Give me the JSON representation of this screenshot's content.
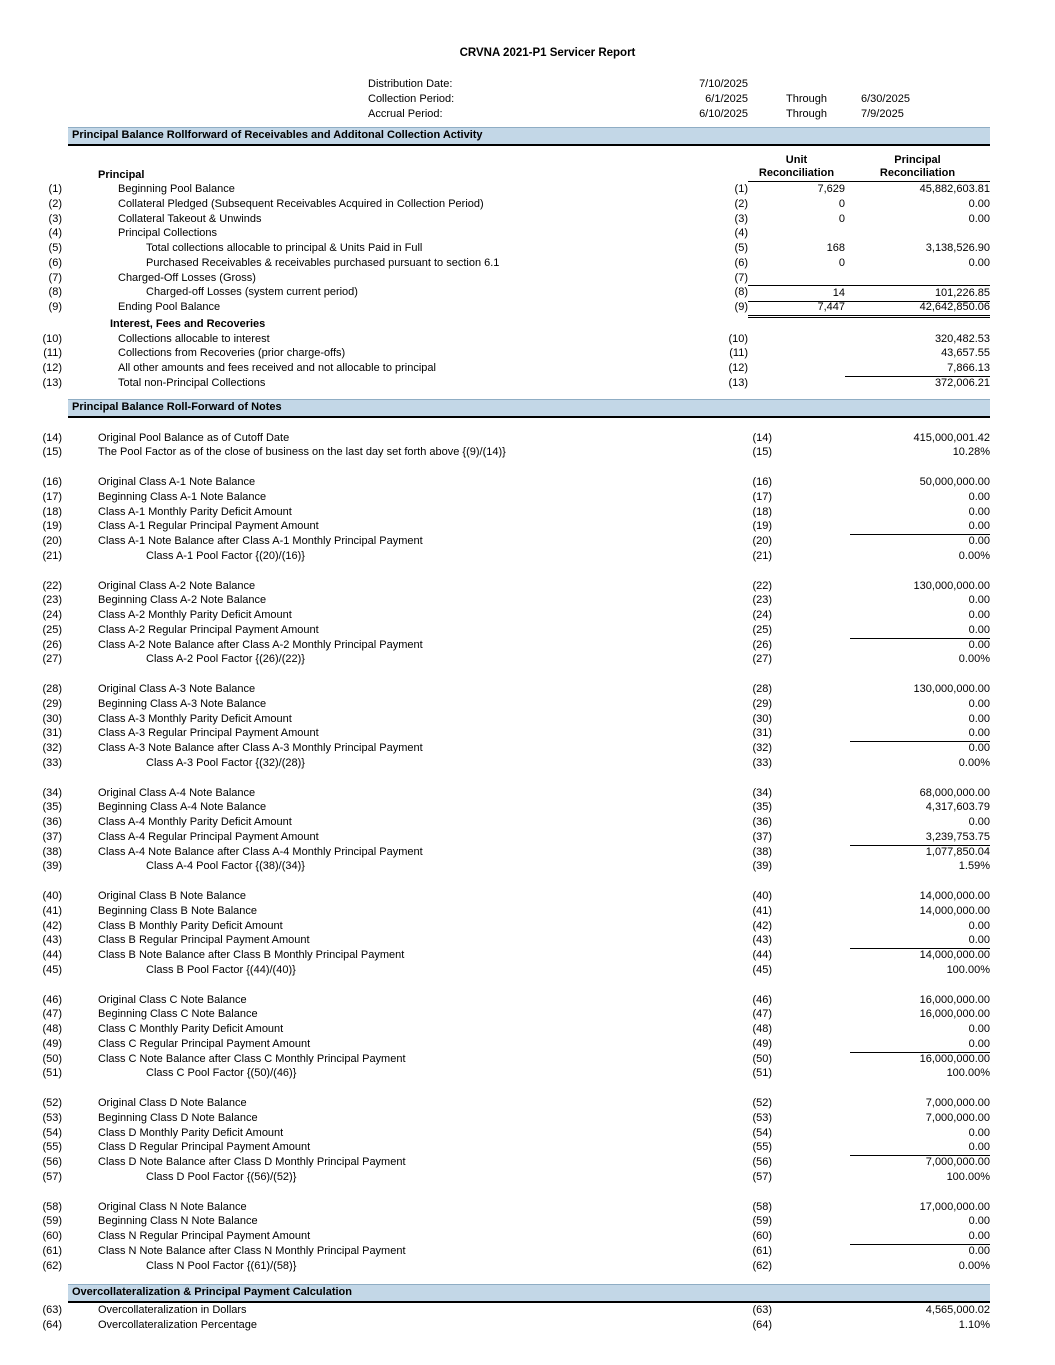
{
  "title": "CRVNA 2021-P1 Servicer Report",
  "meta": [
    {
      "label": "Distribution Date:",
      "value": "7/10/2025",
      "through": "",
      "end": ""
    },
    {
      "label": "Collection Period:",
      "value": "6/1/2025",
      "through": "Through",
      "end": "6/30/2025"
    },
    {
      "label": "Accrual Period:",
      "value": "6/10/2025",
      "through": "Through",
      "end": "7/9/2025"
    }
  ],
  "section1": {
    "bar": "Principal Balance Rollforward of Receivables and Additonal Collection Activity",
    "group_label": "Principal",
    "unit_header_line1": "Unit",
    "unit_header_line2": "Reconciliation",
    "principal_header_line1": "Principal",
    "principal_header_line2": "Reconciliation",
    "rows_a": [
      {
        "num": "(1)",
        "label": "Beginning Pool Balance",
        "indent": 1,
        "unit": "7,629",
        "principal": "45,882,603.81",
        "line": "",
        "span": ""
      },
      {
        "num": "(2)",
        "label": "Collateral Pledged (Subsequent Receivables Acquired in Collection Period)",
        "indent": 1,
        "unit": "0",
        "principal": "0.00",
        "line": "",
        "span": ""
      },
      {
        "num": "(3)",
        "label": "Collateral Takeout & Unwinds",
        "indent": 1,
        "unit": "0",
        "principal": "0.00",
        "line": "",
        "span": ""
      },
      {
        "num": "(4)",
        "label": "Principal Collections",
        "indent": 1,
        "unit": "",
        "principal": "",
        "line": "",
        "span": ""
      },
      {
        "num": "(5)",
        "label": "Total collections allocable to principal & Units Paid in Full",
        "indent": 2,
        "unit": "168",
        "principal": "3,138,526.90",
        "line": "",
        "span": ""
      },
      {
        "num": "(6)",
        "label": "Purchased Receivables & receivables purchased pursuant to section 6.1",
        "indent": 2,
        "unit": "0",
        "principal": "0.00",
        "line": "",
        "span": ""
      },
      {
        "num": "(7)",
        "label": "Charged-Off Losses (Gross)",
        "indent": 1,
        "unit": "",
        "principal": "",
        "line": "",
        "span": ""
      },
      {
        "num": "(8)",
        "label": "Charged-off Losses (system current period)",
        "indent": 2,
        "unit": "14",
        "principal": "101,226.85",
        "line": "top-bottom",
        "span": "both"
      },
      {
        "num": "(9)",
        "label": "Ending Pool Balance",
        "indent": 1,
        "unit": "7,447",
        "principal": "42,642,850.06",
        "line": "double",
        "span": "both"
      }
    ],
    "subheading": "Interest, Fees and Recoveries",
    "rows_b": [
      {
        "num": "(10)",
        "label": "Collections allocable to interest",
        "indent": 1,
        "unit": "",
        "principal": "320,482.53",
        "line": "",
        "span": ""
      },
      {
        "num": "(11)",
        "label": "Collections from Recoveries (prior charge-offs)",
        "indent": 1,
        "unit": "",
        "principal": "43,657.55",
        "line": "",
        "span": ""
      },
      {
        "num": "(12)",
        "label": "All other amounts and fees received and not allocable to principal",
        "indent": 1,
        "unit": "",
        "principal": "7,866.13",
        "line": "bottom",
        "span": "prin"
      },
      {
        "num": "(13)",
        "label": "Total non-Principal Collections",
        "indent": 1,
        "unit": "",
        "principal": "372,006.21",
        "line": "",
        "span": ""
      }
    ]
  },
  "section2": {
    "bar": "Principal Balance Roll-Forward of Notes",
    "intro_rows": [
      {
        "num": "(14)",
        "label": "Original Pool Balance as of Cutoff Date",
        "indent": 0,
        "value": "415,000,001.42",
        "line": ""
      },
      {
        "num": "(15)",
        "label": "The Pool Factor as of the close of business on the last day set forth above {(9)/(14)}",
        "indent": 0,
        "value": "10.28%",
        "line": ""
      }
    ],
    "blocks": [
      [
        {
          "num": "(16)",
          "label": "Original Class A-1 Note Balance",
          "indent": 0,
          "value": "50,000,000.00",
          "line": ""
        },
        {
          "num": "(17)",
          "label": "Beginning Class A-1 Note Balance",
          "indent": 0,
          "value": "0.00",
          "line": ""
        },
        {
          "num": "(18)",
          "label": "Class A-1 Monthly Parity Deficit Amount",
          "indent": 0,
          "value": "0.00",
          "line": ""
        },
        {
          "num": "(19)",
          "label": "Class A-1 Regular Principal Payment Amount",
          "indent": 0,
          "value": "0.00",
          "line": "bottom"
        },
        {
          "num": "(20)",
          "label": "Class A-1 Note Balance after Class A-1 Monthly Principal Payment",
          "indent": 0,
          "value": "0.00",
          "line": ""
        },
        {
          "num": "(21)",
          "label": "Class A-1 Pool Factor {(20)/(16)}",
          "indent": 1,
          "value": "0.00%",
          "line": ""
        }
      ],
      [
        {
          "num": "(22)",
          "label": "Original Class A-2 Note Balance",
          "indent": 0,
          "value": "130,000,000.00",
          "line": ""
        },
        {
          "num": "(23)",
          "label": "Beginning Class A-2 Note Balance",
          "indent": 0,
          "value": "0.00",
          "line": ""
        },
        {
          "num": "(24)",
          "label": "Class A-2 Monthly Parity Deficit Amount",
          "indent": 0,
          "value": "0.00",
          "line": ""
        },
        {
          "num": "(25)",
          "label": "Class A-2 Regular Principal Payment Amount",
          "indent": 0,
          "value": "0.00",
          "line": "bottom"
        },
        {
          "num": "(26)",
          "label": "Class A-2 Note Balance after Class A-2 Monthly Principal Payment",
          "indent": 0,
          "value": "0.00",
          "line": ""
        },
        {
          "num": "(27)",
          "label": "Class A-2 Pool Factor {(26)/(22)}",
          "indent": 1,
          "value": "0.00%",
          "line": ""
        }
      ],
      [
        {
          "num": "(28)",
          "label": "Original Class A-3 Note Balance",
          "indent": 0,
          "value": "130,000,000.00",
          "line": ""
        },
        {
          "num": "(29)",
          "label": "Beginning Class A-3 Note Balance",
          "indent": 0,
          "value": "0.00",
          "line": ""
        },
        {
          "num": "(30)",
          "label": "Class A-3 Monthly Parity Deficit Amount",
          "indent": 0,
          "value": "0.00",
          "line": ""
        },
        {
          "num": "(31)",
          "label": "Class A-3 Regular Principal Payment Amount",
          "indent": 0,
          "value": "0.00",
          "line": "bottom"
        },
        {
          "num": "(32)",
          "label": "Class A-3 Note Balance after Class A-3 Monthly Principal Payment",
          "indent": 0,
          "value": "0.00",
          "line": ""
        },
        {
          "num": "(33)",
          "label": "Class A-3 Pool Factor {(32)/(28)}",
          "indent": 1,
          "value": "0.00%",
          "line": ""
        }
      ],
      [
        {
          "num": "(34)",
          "label": "Original Class A-4 Note Balance",
          "indent": 0,
          "value": "68,000,000.00",
          "line": ""
        },
        {
          "num": "(35)",
          "label": "Beginning Class A-4 Note Balance",
          "indent": 0,
          "value": "4,317,603.79",
          "line": ""
        },
        {
          "num": "(36)",
          "label": "Class A-4 Monthly Parity Deficit Amount",
          "indent": 0,
          "value": "0.00",
          "line": ""
        },
        {
          "num": "(37)",
          "label": "Class A-4 Regular Principal Payment Amount",
          "indent": 0,
          "value": "3,239,753.75",
          "line": "bottom"
        },
        {
          "num": "(38)",
          "label": "Class A-4 Note Balance after Class A-4 Monthly Principal Payment",
          "indent": 0,
          "value": "1,077,850.04",
          "line": ""
        },
        {
          "num": "(39)",
          "label": "Class A-4 Pool Factor {(38)/(34)}",
          "indent": 1,
          "value": "1.59%",
          "line": ""
        }
      ],
      [
        {
          "num": "(40)",
          "label": "Original Class B Note Balance",
          "indent": 0,
          "value": "14,000,000.00",
          "line": ""
        },
        {
          "num": "(41)",
          "label": "Beginning Class B Note Balance",
          "indent": 0,
          "value": "14,000,000.00",
          "line": ""
        },
        {
          "num": "(42)",
          "label": "Class B Monthly Parity Deficit Amount",
          "indent": 0,
          "value": "0.00",
          "line": ""
        },
        {
          "num": "(43)",
          "label": "Class B Regular Principal Payment Amount",
          "indent": 0,
          "value": "0.00",
          "line": "bottom"
        },
        {
          "num": "(44)",
          "label": "Class B Note Balance after Class B Monthly Principal Payment",
          "indent": 0,
          "value": "14,000,000.00",
          "line": ""
        },
        {
          "num": "(45)",
          "label": "Class B Pool Factor {(44)/(40)}",
          "indent": 1,
          "value": "100.00%",
          "line": ""
        }
      ],
      [
        {
          "num": "(46)",
          "label": "Original Class C Note Balance",
          "indent": 0,
          "value": "16,000,000.00",
          "line": ""
        },
        {
          "num": "(47)",
          "label": "Beginning Class C Note Balance",
          "indent": 0,
          "value": "16,000,000.00",
          "line": ""
        },
        {
          "num": "(48)",
          "label": "Class C Monthly Parity Deficit Amount",
          "indent": 0,
          "value": "0.00",
          "line": ""
        },
        {
          "num": "(49)",
          "label": "Class C Regular Principal Payment Amount",
          "indent": 0,
          "value": "0.00",
          "line": "bottom"
        },
        {
          "num": "(50)",
          "label": "Class C Note Balance after Class C Monthly Principal Payment",
          "indent": 0,
          "value": "16,000,000.00",
          "line": ""
        },
        {
          "num": "(51)",
          "label": "Class C Pool Factor {(50)/(46)}",
          "indent": 1,
          "value": "100.00%",
          "line": ""
        }
      ],
      [
        {
          "num": "(52)",
          "label": "Original Class D Note Balance",
          "indent": 0,
          "value": "7,000,000.00",
          "line": ""
        },
        {
          "num": "(53)",
          "label": "Beginning Class D Note Balance",
          "indent": 0,
          "value": "7,000,000.00",
          "line": ""
        },
        {
          "num": "(54)",
          "label": "Class D Monthly Parity Deficit Amount",
          "indent": 0,
          "value": "0.00",
          "line": ""
        },
        {
          "num": "(55)",
          "label": "Class D Regular Principal Payment Amount",
          "indent": 0,
          "value": "0.00",
          "line": "bottom"
        },
        {
          "num": "(56)",
          "label": "Class D Note Balance after Class D Monthly Principal Payment",
          "indent": 0,
          "value": "7,000,000.00",
          "line": ""
        },
        {
          "num": "(57)",
          "label": "Class D Pool Factor {(56)/(52)}",
          "indent": 1,
          "value": "100.00%",
          "line": ""
        }
      ],
      [
        {
          "num": "(58)",
          "label": "Original Class N Note Balance",
          "indent": 0,
          "value": "17,000,000.00",
          "line": ""
        },
        {
          "num": "(59)",
          "label": "Beginning Class N Note Balance",
          "indent": 0,
          "value": "0.00",
          "line": ""
        },
        {
          "num": "(60)",
          "label": "Class N Regular Principal Payment Amount",
          "indent": 0,
          "value": "0.00",
          "line": "bottom"
        },
        {
          "num": "(61)",
          "label": "Class N Note Balance after Class N Monthly Principal Payment",
          "indent": 0,
          "value": "0.00",
          "line": ""
        },
        {
          "num": "(62)",
          "label": "Class N Pool Factor {(61)/(58)}",
          "indent": 1,
          "value": "0.00%",
          "line": ""
        }
      ]
    ]
  },
  "section3": {
    "bar": "Overcollateralization & Principal Payment Calculation",
    "rows": [
      {
        "num": "(63)",
        "label": "Overcollateralization in Dollars",
        "indent": 0,
        "value": "4,565,000.02",
        "line": ""
      },
      {
        "num": "(64)",
        "label": "Overcollateralization Percentage",
        "indent": 0,
        "value": "1.10%",
        "line": ""
      }
    ]
  }
}
